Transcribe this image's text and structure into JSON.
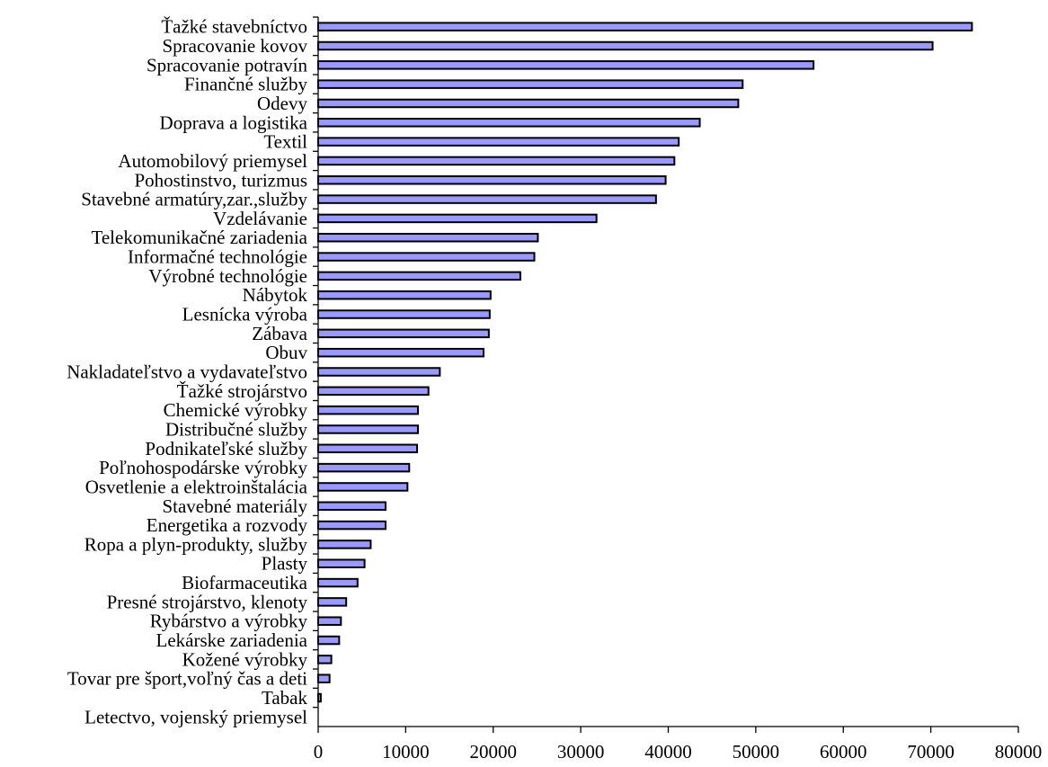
{
  "chart_data": {
    "type": "bar",
    "orientation": "horizontal",
    "title": "",
    "xlabel": "",
    "ylabel": "",
    "xlim": [
      0,
      80000
    ],
    "xticks": [
      0,
      10000,
      20000,
      30000,
      40000,
      50000,
      60000,
      70000,
      80000
    ],
    "tick_labels": [
      "0",
      "10000",
      "20000",
      "30000",
      "40000",
      "50000",
      "60000",
      "70000",
      "80000"
    ],
    "grid": false,
    "legend": false,
    "bar_color": "#9999ff",
    "categories": [
      "Ťažké stavebníctvo",
      "Spracovanie kovov",
      "Spracovanie potravín",
      "Finančné služby",
      "Odevy",
      "Doprava a logistika",
      "Textil",
      "Automobilový priemysel",
      "Pohostinstvo, turizmus",
      "Stavebné armatúry,zar.,služby",
      "Vzdelávanie",
      "Telekomunikačné zariadenia",
      "Informačné technológie",
      "Výrobné technológie",
      "Nábytok",
      "Lesnícka výroba",
      "Zábava",
      "Obuv",
      "Nakladateľstvo a vydavateľstvo",
      "Ťažké strojárstvo",
      "Chemické výrobky",
      "Distribučné služby",
      "Podnikateľské služby",
      "Poľnohospodárske výrobky",
      "Osvetlenie a elektroinštalácia",
      "Stavebné materiály",
      "Energetika a rozvody",
      "Ropa a plyn-produkty, služby",
      "Plasty",
      "Biofarmaceutika",
      "Presné strojárstvo, klenoty",
      "Rybárstvo a výrobky",
      "Lekárske zariadenia",
      "Kožené výrobky",
      "Tovar pre šport,voľný čas a deti",
      "Tabak",
      "Letectvo, vojenský priemysel"
    ],
    "values": [
      74700,
      70200,
      56600,
      48500,
      48000,
      43600,
      41200,
      40700,
      39700,
      38600,
      31800,
      25100,
      24700,
      23100,
      19700,
      19600,
      19500,
      18900,
      13900,
      12600,
      11400,
      11400,
      11300,
      10400,
      10200,
      7700,
      7700,
      6000,
      5300,
      4500,
      3200,
      2600,
      2400,
      1500,
      1300,
      300,
      0
    ]
  }
}
